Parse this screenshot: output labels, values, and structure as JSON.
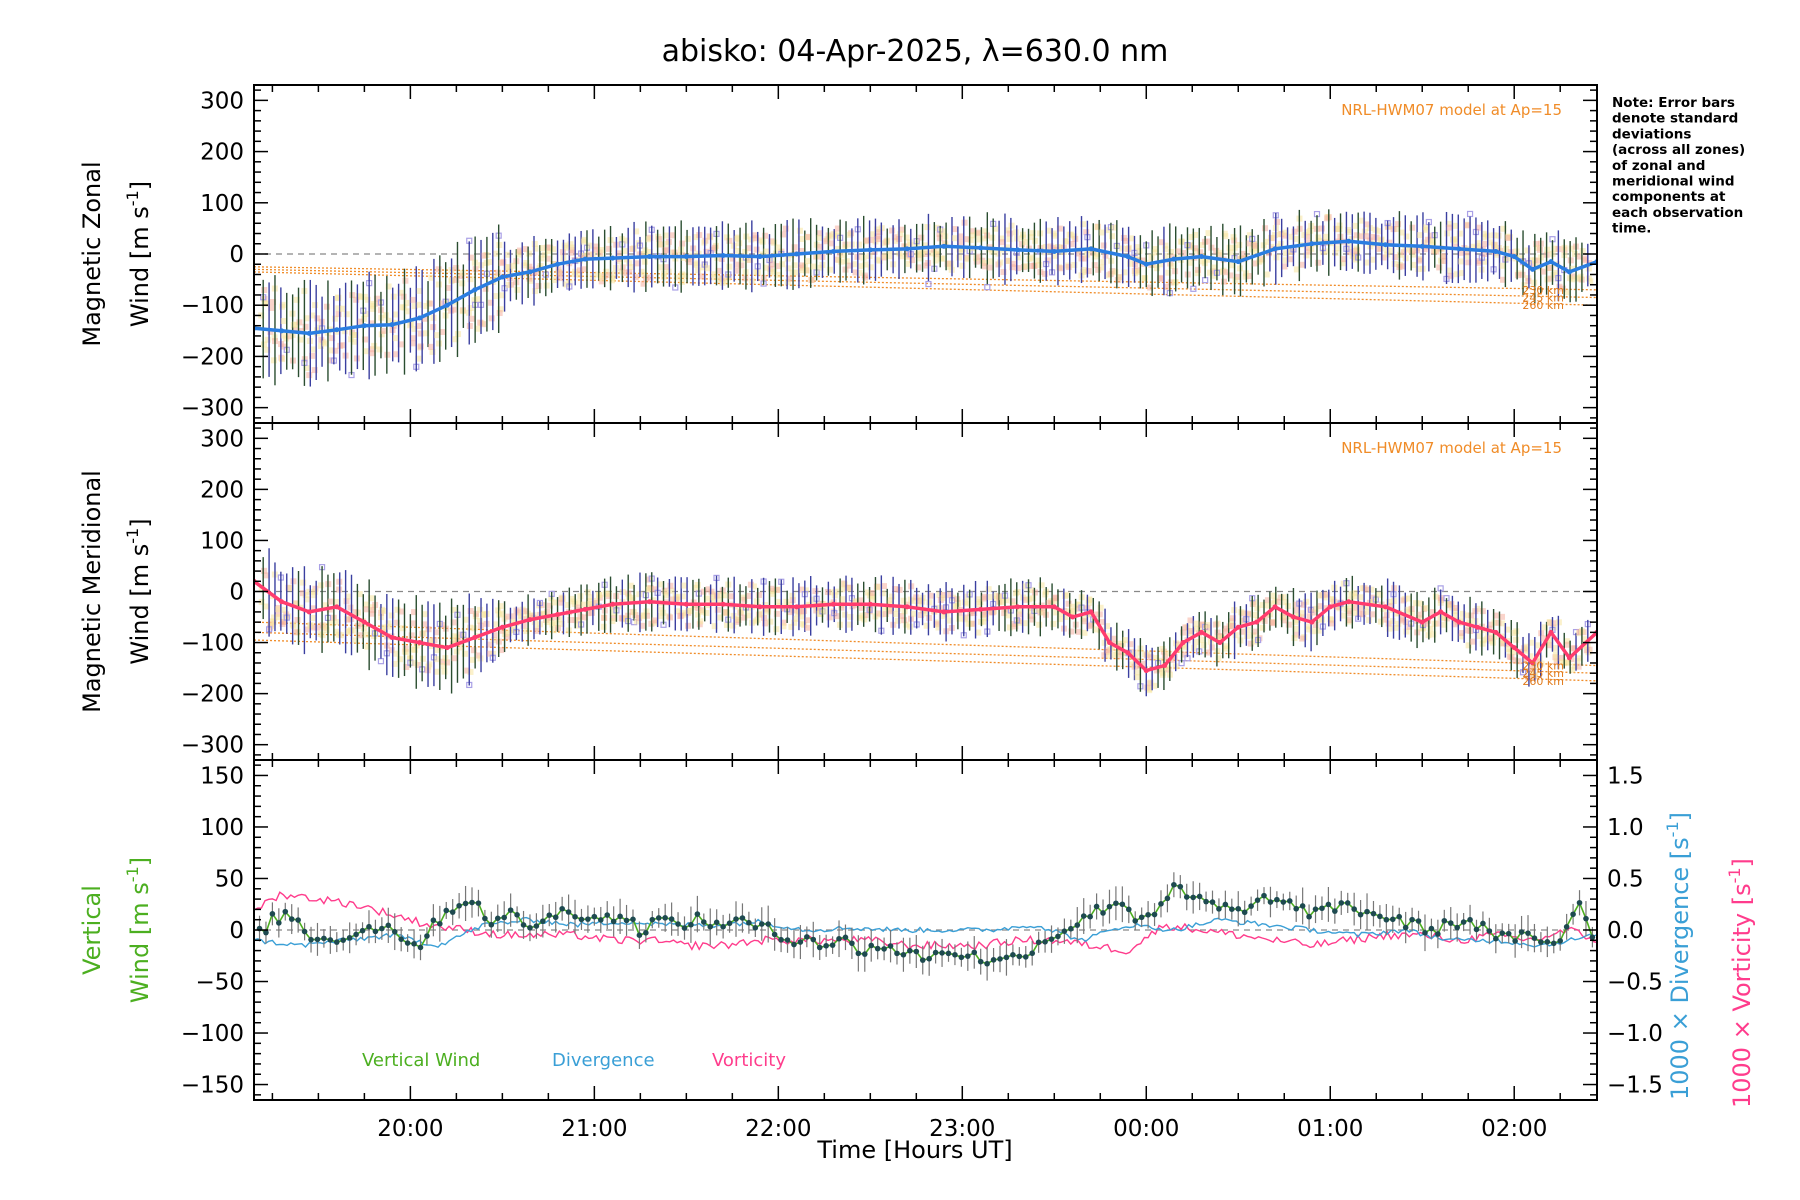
{
  "title": "abisko: 04-Apr-2025, λ=630.0 nm",
  "note_lines": [
    "Note: Error bars",
    "denote standard",
    "deviations",
    "(across all zones)",
    "of zonal and",
    "meridional wind",
    "components at",
    "each observation",
    "time."
  ],
  "xlabel": "Time [Hours UT]",
  "colors": {
    "zonal_line": "#2a7de1",
    "meridional_line": "#ff3c6e",
    "vertical": "#4caf20",
    "divergence": "#3a9fd6",
    "vorticity": "#ff3c8c",
    "model": "#f08c28",
    "zone_marker": "#a9a0e6",
    "zone_halo": "#f5b0a0",
    "zone_halo2": "#f7e5a0",
    "errbar": "#2a4d30",
    "dash": "#888888"
  },
  "chart_data": [
    {
      "type": "line",
      "panel": "zonal",
      "ylabel_line1": "Magnetic Zonal",
      "ylabel_line2": "Wind [m s",
      "ylabel_sup": "-1",
      "ylabel_close": "]",
      "ylim": [
        -330,
        330
      ],
      "yticks": [
        -300,
        -200,
        -100,
        0,
        100,
        200,
        300
      ],
      "yticklabels": [
        "−300",
        "−200",
        "−100",
        "0",
        "100",
        "200",
        "300"
      ],
      "xlim": [
        19.15,
        26.45
      ],
      "xticks": [
        20,
        21,
        22,
        23,
        24,
        25,
        26
      ],
      "model_label": "NRL-HWM07 model at Ap=15",
      "altitude_labels": [
        "230 km",
        "245 km",
        "260 km"
      ],
      "series": [
        {
          "name": "Zonal wind",
          "x": [
            19.15,
            19.3,
            19.45,
            19.6,
            19.75,
            19.9,
            20.05,
            20.2,
            20.35,
            20.5,
            20.65,
            20.8,
            20.95,
            21.1,
            21.3,
            21.5,
            21.7,
            21.9,
            22.1,
            22.3,
            22.5,
            22.7,
            22.9,
            23.1,
            23.3,
            23.5,
            23.7,
            23.9,
            24.0,
            24.15,
            24.3,
            24.5,
            24.7,
            24.9,
            25.1,
            25.3,
            25.5,
            25.7,
            25.9,
            26.0,
            26.1,
            26.2,
            26.3,
            26.45
          ],
          "values": [
            -145,
            -150,
            -155,
            -148,
            -140,
            -138,
            -125,
            -100,
            -70,
            -45,
            -35,
            -20,
            -10,
            -8,
            -5,
            -5,
            -3,
            -5,
            0,
            5,
            8,
            10,
            15,
            12,
            8,
            5,
            10,
            -5,
            -20,
            -10,
            -5,
            -15,
            10,
            20,
            25,
            18,
            15,
            10,
            5,
            -5,
            -30,
            -15,
            -35,
            -15
          ]
        },
        {
          "name": "Model 230 km",
          "x": [
            19.15,
            26.45
          ],
          "values": [
            -25,
            -70
          ]
        },
        {
          "name": "Model 245 km",
          "x": [
            19.15,
            26.45
          ],
          "values": [
            -30,
            -85
          ]
        },
        {
          "name": "Model 260 km",
          "x": [
            19.15,
            26.45
          ],
          "values": [
            -35,
            -100
          ]
        }
      ]
    },
    {
      "type": "line",
      "panel": "meridional",
      "ylabel_line1": "Magnetic Meridional",
      "ylabel_line2": "Wind [m s",
      "ylabel_sup": "-1",
      "ylabel_close": "]",
      "ylim": [
        -330,
        330
      ],
      "yticks": [
        -300,
        -200,
        -100,
        0,
        100,
        200,
        300
      ],
      "yticklabels": [
        "−300",
        "−200",
        "−100",
        "0",
        "100",
        "200",
        "300"
      ],
      "xlim": [
        19.15,
        26.45
      ],
      "xticks": [
        20,
        21,
        22,
        23,
        24,
        25,
        26
      ],
      "model_label": "NRL-HWM07 model at Ap=15",
      "altitude_labels": [
        "230 km",
        "245 km",
        "260 km"
      ],
      "series": [
        {
          "name": "Meridional wind",
          "x": [
            19.15,
            19.3,
            19.45,
            19.6,
            19.75,
            19.9,
            20.05,
            20.2,
            20.35,
            20.5,
            20.65,
            20.8,
            20.95,
            21.1,
            21.3,
            21.5,
            21.7,
            21.9,
            22.1,
            22.3,
            22.5,
            22.7,
            22.9,
            23.1,
            23.3,
            23.5,
            23.6,
            23.7,
            23.8,
            23.9,
            24.0,
            24.1,
            24.2,
            24.3,
            24.4,
            24.5,
            24.6,
            24.7,
            24.8,
            24.9,
            25.0,
            25.1,
            25.3,
            25.5,
            25.6,
            25.7,
            25.8,
            25.9,
            26.0,
            26.1,
            26.2,
            26.3,
            26.45
          ],
          "values": [
            20,
            -20,
            -40,
            -30,
            -60,
            -90,
            -100,
            -110,
            -90,
            -70,
            -55,
            -45,
            -35,
            -25,
            -20,
            -25,
            -25,
            -30,
            -30,
            -25,
            -25,
            -30,
            -40,
            -35,
            -30,
            -30,
            -50,
            -40,
            -100,
            -120,
            -155,
            -145,
            -100,
            -80,
            -100,
            -70,
            -60,
            -30,
            -50,
            -60,
            -30,
            -20,
            -30,
            -60,
            -40,
            -60,
            -70,
            -80,
            -110,
            -140,
            -80,
            -130,
            -80
          ]
        },
        {
          "name": "Model 230 km",
          "x": [
            19.15,
            26.45
          ],
          "values": [
            -60,
            -145
          ]
        },
        {
          "name": "Model 245 km",
          "x": [
            19.15,
            26.45
          ],
          "values": [
            -80,
            -160
          ]
        },
        {
          "name": "Model 260 km",
          "x": [
            19.15,
            26.45
          ],
          "values": [
            -95,
            -175
          ]
        }
      ]
    },
    {
      "type": "line",
      "panel": "vertical",
      "ylabel_line1": "Vertical",
      "ylabel_line2": "Wind [m s",
      "ylabel_sup": "-1",
      "ylabel_close": "]",
      "ylim": [
        -165,
        165
      ],
      "yticks": [
        -150,
        -100,
        -50,
        0,
        50,
        100,
        150
      ],
      "yticklabels": [
        "−150",
        "−100",
        "−50",
        "0",
        "50",
        "100",
        "150"
      ],
      "right_ylim": [
        -1.65,
        1.65
      ],
      "right_yticks": [
        -1.5,
        -1.0,
        -0.5,
        0.0,
        0.5,
        1.0,
        1.5
      ],
      "right_yticklabels": [
        "−1.5",
        "−1.0",
        "−0.5",
        "0.0",
        "0.5",
        "1.0",
        "1.5"
      ],
      "right_ylabel_div": "1000 × Divergence [s",
      "right_ylabel_vort": "1000 × Vorticity [s",
      "right_ylabel_sup": "-1",
      "right_ylabel_close": "]",
      "xlim": [
        19.15,
        26.45
      ],
      "xticks": [
        20,
        21,
        22,
        23,
        24,
        25,
        26
      ],
      "xticklabels": [
        "20:00",
        "21:00",
        "22:00",
        "23:00",
        "00:00",
        "01:00",
        "02:00"
      ],
      "legend": [
        "Vertical Wind",
        "Divergence",
        "Vorticity"
      ],
      "series": [
        {
          "name": "Vertical Wind",
          "x": [
            19.15,
            19.25,
            19.35,
            19.45,
            19.55,
            19.65,
            19.75,
            19.85,
            19.95,
            20.05,
            20.15,
            20.25,
            20.35,
            20.45,
            20.55,
            20.65,
            20.75,
            20.85,
            20.95,
            21.05,
            21.15,
            21.25,
            21.35,
            21.45,
            21.55,
            21.65,
            21.75,
            21.85,
            21.95,
            22.05,
            22.15,
            22.25,
            22.35,
            22.45,
            22.55,
            22.65,
            22.75,
            22.85,
            22.95,
            23.05,
            23.15,
            23.25,
            23.35,
            23.45,
            23.55,
            23.65,
            23.75,
            23.85,
            23.95,
            24.05,
            24.15,
            24.25,
            24.35,
            24.45,
            24.55,
            24.65,
            24.75,
            24.85,
            24.95,
            25.05,
            25.15,
            25.25,
            25.35,
            25.45,
            25.55,
            25.65,
            25.75,
            25.85,
            25.95,
            26.05,
            26.15,
            26.25,
            26.35,
            26.45
          ],
          "values": [
            -10,
            10,
            15,
            -5,
            -10,
            -5,
            0,
            5,
            -5,
            -15,
            10,
            25,
            30,
            5,
            15,
            5,
            10,
            20,
            15,
            10,
            15,
            0,
            10,
            5,
            10,
            5,
            10,
            5,
            0,
            -10,
            -5,
            -15,
            -10,
            -20,
            -15,
            -20,
            -25,
            -25,
            -20,
            -25,
            -30,
            -30,
            -20,
            -10,
            0,
            10,
            20,
            30,
            10,
            20,
            40,
            30,
            25,
            20,
            15,
            35,
            25,
            20,
            15,
            25,
            20,
            15,
            10,
            5,
            0,
            5,
            10,
            0,
            -10,
            -5,
            -15,
            -10,
            30,
            -15
          ]
        },
        {
          "name": "Divergence",
          "x": [
            19.15,
            19.4,
            19.65,
            19.9,
            20.15,
            20.4,
            20.65,
            20.9,
            21.15,
            21.4,
            21.65,
            21.9,
            22.15,
            22.4,
            22.65,
            22.9,
            23.15,
            23.4,
            23.65,
            23.9,
            24.15,
            24.4,
            24.65,
            24.9,
            25.15,
            25.4,
            25.65,
            25.9,
            26.15,
            26.45
          ],
          "values": [
            -0.1,
            -0.15,
            -0.1,
            -0.05,
            -0.15,
            0.05,
            0.1,
            0.05,
            0.08,
            0.05,
            0.05,
            0.08,
            0.0,
            0.02,
            0.0,
            0.0,
            0.0,
            0.05,
            -0.1,
            0.05,
            0.0,
            0.1,
            0.05,
            0.0,
            -0.05,
            0.0,
            -0.1,
            -0.1,
            -0.15,
            -0.05
          ]
        },
        {
          "name": "Vorticity",
          "x": [
            19.15,
            19.3,
            19.5,
            19.7,
            19.9,
            20.1,
            20.3,
            20.5,
            20.7,
            20.9,
            21.1,
            21.3,
            21.5,
            21.7,
            21.9,
            22.1,
            22.3,
            22.5,
            22.7,
            22.9,
            23.1,
            23.3,
            23.5,
            23.7,
            23.9,
            24.1,
            24.3,
            24.5,
            24.7,
            24.9,
            25.1,
            25.3,
            25.5,
            25.7,
            25.9,
            26.1,
            26.3,
            26.45
          ],
          "values": [
            0.2,
            0.35,
            0.3,
            0.25,
            0.15,
            0.05,
            0.0,
            -0.05,
            -0.05,
            -0.05,
            -0.1,
            -0.1,
            -0.15,
            -0.15,
            -0.1,
            -0.1,
            -0.1,
            -0.1,
            -0.15,
            -0.15,
            -0.15,
            -0.1,
            -0.1,
            -0.15,
            -0.2,
            0.05,
            0.0,
            -0.05,
            -0.1,
            -0.15,
            -0.1,
            -0.05,
            -0.05,
            -0.1,
            -0.05,
            -0.1,
            0.0,
            -0.1
          ]
        }
      ]
    }
  ]
}
